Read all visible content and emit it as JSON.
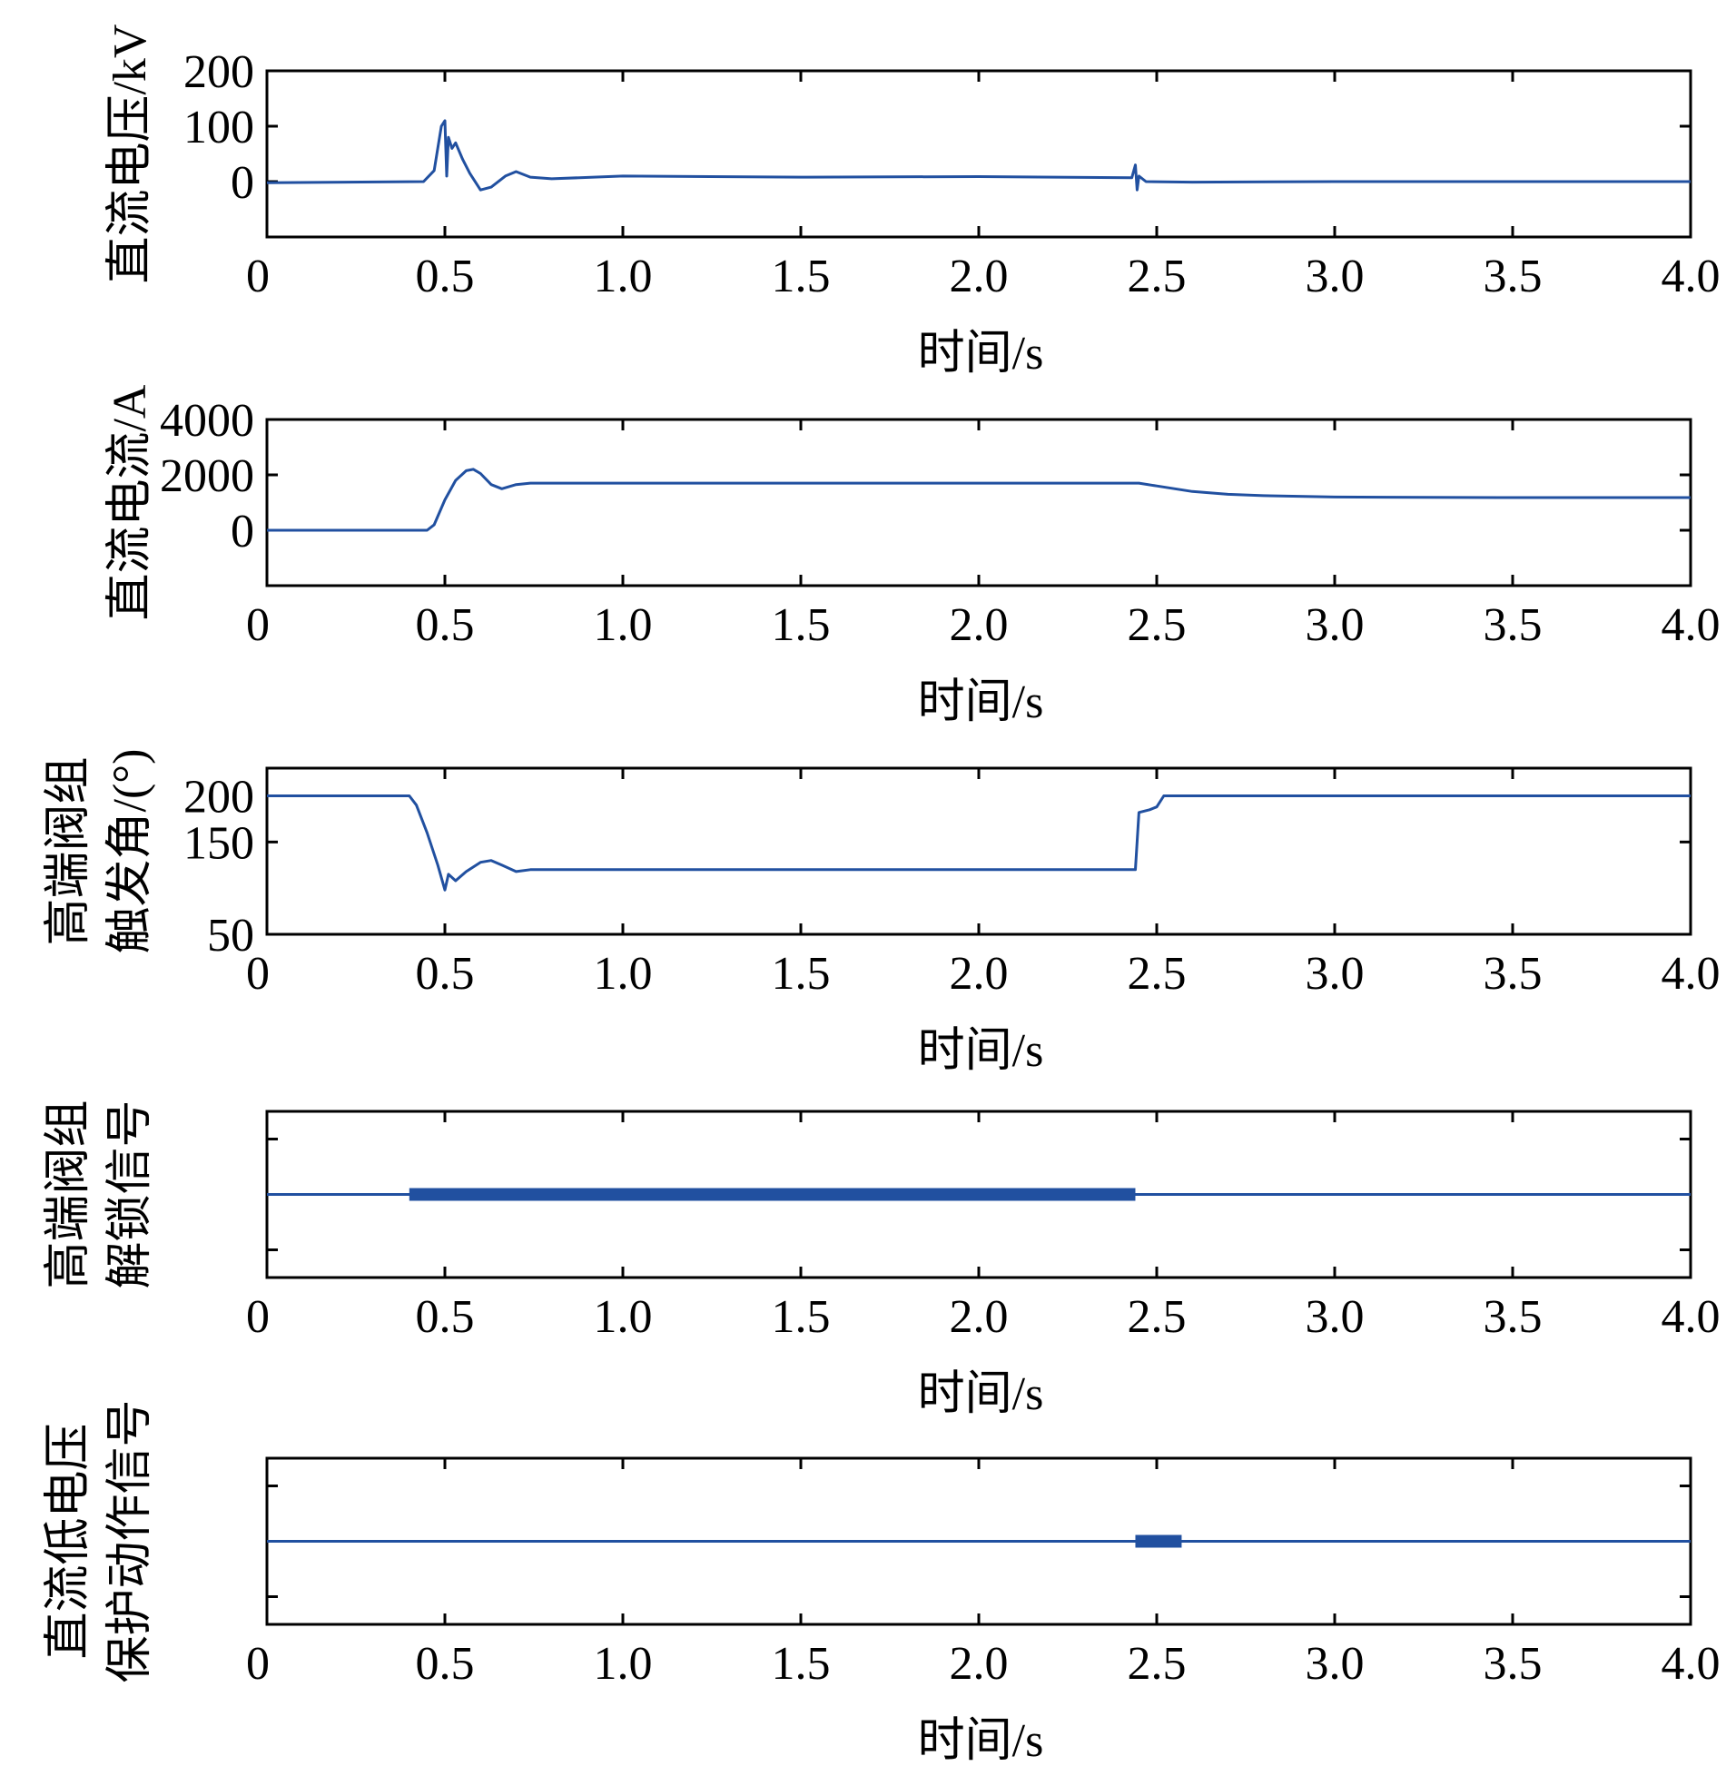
{
  "chart_data": [
    {
      "type": "line",
      "ylabel": [
        "直流电压/kV"
      ],
      "xlabel": "时间/s",
      "xlim": [
        0,
        4.0
      ],
      "ylim": [
        -100,
        200
      ],
      "xticks": [
        "0",
        "0.5",
        "1.0",
        "1.5",
        "2.0",
        "2.5",
        "3.0",
        "3.5",
        "4.0"
      ],
      "yticks": [
        {
          "v": 200,
          "label": "200"
        },
        {
          "v": 100,
          "label": "100"
        },
        {
          "v": 0,
          "label": "0"
        }
      ],
      "minor_yticks": [
        -100
      ],
      "color": "#2150a0",
      "series": [
        {
          "x": [
            0,
            0.44,
            0.47,
            0.49,
            0.5,
            0.505,
            0.51,
            0.52,
            0.53,
            0.55,
            0.57,
            0.6,
            0.63,
            0.67,
            0.7,
            0.74,
            0.8,
            1.0,
            1.5,
            2.0,
            2.43,
            2.44,
            2.445,
            2.45,
            2.47,
            2.6,
            3.0,
            3.5,
            4.0
          ],
          "y": [
            -2,
            0,
            20,
            100,
            110,
            10,
            80,
            60,
            70,
            40,
            15,
            -15,
            -10,
            10,
            18,
            8,
            5,
            10,
            8,
            9,
            7,
            30,
            -15,
            10,
            0,
            -1,
            0,
            0,
            0
          ]
        }
      ]
    },
    {
      "type": "line",
      "ylabel": [
        "直流电流/A"
      ],
      "xlabel": "时间/s",
      "xlim": [
        0,
        4.0
      ],
      "ylim": [
        -2000,
        4000
      ],
      "xticks": [
        "0",
        "0.5",
        "1.0",
        "1.5",
        "2.0",
        "2.5",
        "3.0",
        "3.5",
        "4.0"
      ],
      "yticks": [
        {
          "v": 4000,
          "label": "4000"
        },
        {
          "v": 2000,
          "label": "2000"
        },
        {
          "v": 0,
          "label": "0"
        }
      ],
      "minor_yticks": [
        -2000
      ],
      "color": "#2150a0",
      "series": [
        {
          "x": [
            0,
            0.45,
            0.47,
            0.5,
            0.53,
            0.56,
            0.58,
            0.6,
            0.63,
            0.66,
            0.7,
            0.74,
            0.8,
            1.0,
            1.5,
            2.0,
            2.43,
            2.45,
            2.5,
            2.6,
            2.7,
            2.8,
            3.0,
            3.5,
            4.0
          ],
          "y": [
            0,
            0,
            200,
            1100,
            1800,
            2150,
            2200,
            2050,
            1650,
            1500,
            1650,
            1700,
            1700,
            1700,
            1700,
            1700,
            1700,
            1700,
            1600,
            1400,
            1300,
            1250,
            1200,
            1180,
            1180
          ]
        }
      ]
    },
    {
      "type": "line",
      "ylabel": [
        "高端阀组",
        "触发角/(°)"
      ],
      "xlabel": "时间/s",
      "xlim": [
        0,
        4.0
      ],
      "ylim": [
        50,
        230
      ],
      "xticks": [
        "0",
        "0.5",
        "1.0",
        "1.5",
        "2.0",
        "2.5",
        "3.0",
        "3.5",
        "4.0"
      ],
      "yticks": [
        {
          "v": 200,
          "label": "200"
        },
        {
          "v": 150,
          "label": "150"
        },
        {
          "v": 50,
          "label": "50"
        }
      ],
      "minor_yticks": [],
      "color": "#2150a0",
      "series": [
        {
          "x": [
            0,
            0.4,
            0.42,
            0.45,
            0.48,
            0.5,
            0.51,
            0.53,
            0.56,
            0.6,
            0.63,
            0.66,
            0.7,
            0.74,
            0.8,
            1.0,
            1.5,
            2.0,
            2.43,
            2.44,
            2.45,
            2.48,
            2.5,
            2.52,
            2.55,
            3.0,
            3.5,
            4.0
          ],
          "y": [
            200,
            200,
            190,
            160,
            125,
            98,
            115,
            108,
            118,
            128,
            130,
            125,
            118,
            120,
            120,
            120,
            120,
            120,
            120,
            120,
            182,
            185,
            188,
            200,
            200,
            200,
            200,
            200
          ]
        }
      ]
    },
    {
      "type": "line",
      "ylabel": [
        "高端阀组",
        "解锁信号"
      ],
      "xlabel": "时间/s",
      "xlim": [
        0,
        4.0
      ],
      "ylim": [
        -1.5,
        1.5
      ],
      "xticks": [
        "0",
        "0.5",
        "1.0",
        "1.5",
        "2.0",
        "2.5",
        "3.0",
        "3.5",
        "4.0"
      ],
      "yticks": [],
      "minor_yticks": [
        1,
        -1
      ],
      "color": "#2150a0",
      "level": 0,
      "active_interval": [
        0.4,
        2.44
      ]
    },
    {
      "type": "line",
      "ylabel": [
        "直流低电压",
        "保护动作信号"
      ],
      "xlabel": "时间/s",
      "xlim": [
        0,
        4.0
      ],
      "ylim": [
        -1.5,
        1.5
      ],
      "xticks": [
        "0",
        "0.5",
        "1.0",
        "1.5",
        "2.0",
        "2.5",
        "3.0",
        "3.5",
        "4.0"
      ],
      "yticks": [],
      "minor_yticks": [
        1,
        -1
      ],
      "color": "#2150a0",
      "level": 0,
      "active_interval": [
        2.44,
        2.57
      ]
    }
  ]
}
